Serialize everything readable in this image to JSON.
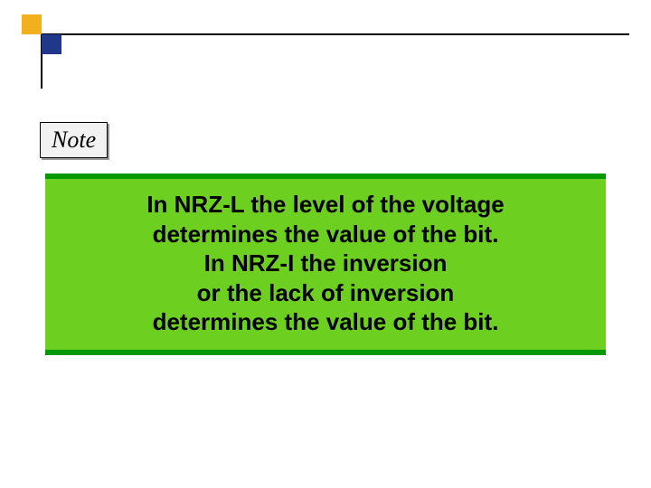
{
  "decor": {
    "square1_color": "#f2b01e",
    "square2_color": "#20378a",
    "line_color": "#000000"
  },
  "note": {
    "label": "Note",
    "box_bg": "#f2f2f2",
    "font_family": "Times New Roman",
    "font_style": "italic",
    "font_size": 26
  },
  "content": {
    "bar_color": "#009a00",
    "panel_bg": "#6dcf1f",
    "text_color": "#000000",
    "font_size": 26,
    "font_weight": "bold",
    "lines": {
      "l1": "In NRZ-L the level of the voltage",
      "l2": "determines the value of the bit.",
      "l3": "In NRZ-I the inversion",
      "l4": "or the lack of inversion",
      "l5": "determines the value of the bit."
    }
  }
}
